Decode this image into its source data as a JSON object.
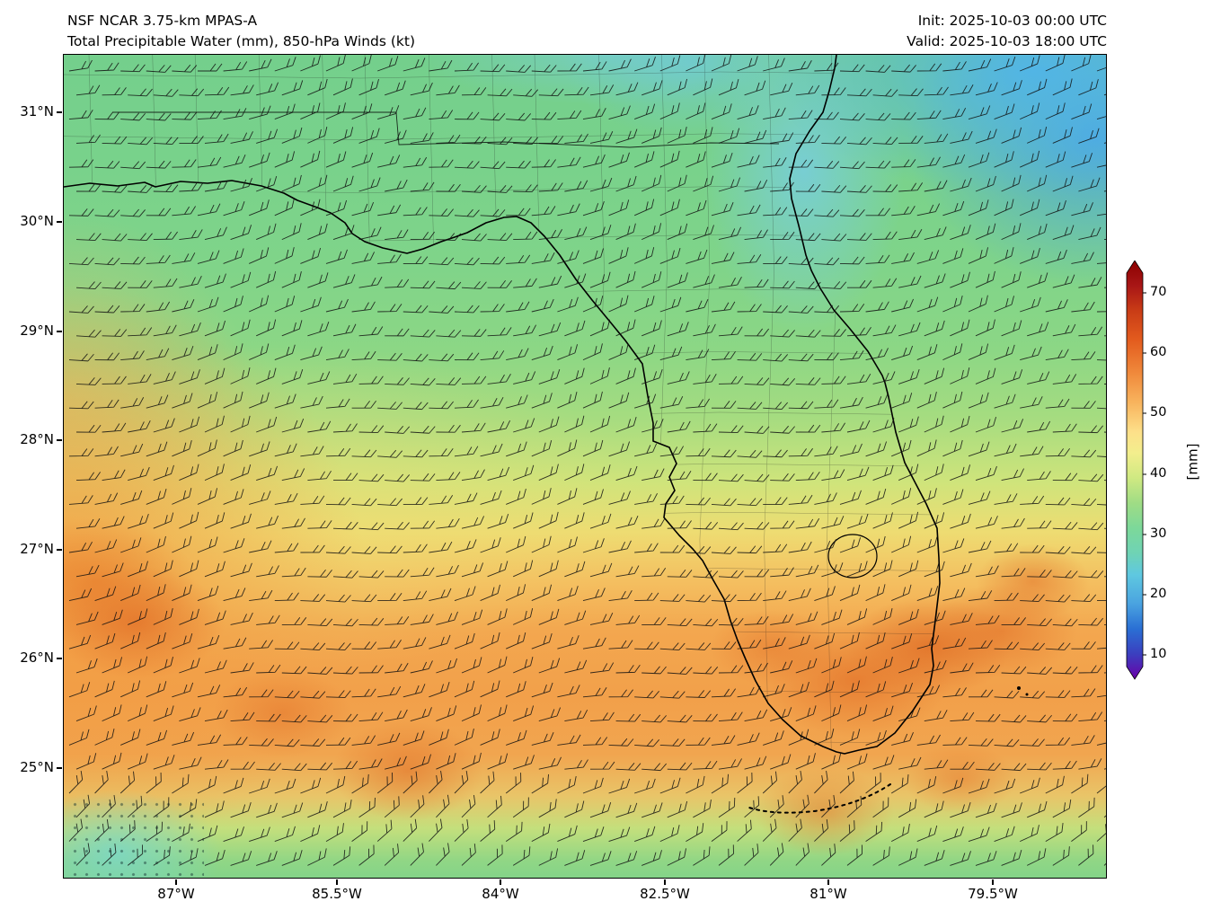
{
  "header": {
    "model_line": "NSF NCAR 3.75-km MPAS-A",
    "product_line": "Total Precipitable Water (mm), 850-hPa Winds (kt)",
    "init_line": "Init: 2025-10-03 00:00 UTC",
    "valid_line": "Valid: 2025-10-03 18:00 UTC"
  },
  "chart_data": {
    "type": "heatmap",
    "title": "Total Precipitable Water (mm), 850-hPa Winds (kt)",
    "subtitle": "NSF NCAR 3.75-km MPAS-A",
    "region": "Florida peninsula, eastern Gulf of Mexico and adjacent Atlantic",
    "x_axis": {
      "label": "",
      "ticks": [
        "87°W",
        "85.5°W",
        "84°W",
        "82.5°W",
        "81°W",
        "79.5°W"
      ],
      "range_deg_west": [
        88.0,
        78.5
      ]
    },
    "y_axis": {
      "label": "",
      "ticks": [
        "31°N",
        "30°N",
        "29°N",
        "28°N",
        "27°N",
        "26°N",
        "25°N"
      ],
      "range_deg_north": [
        24.0,
        31.5
      ]
    },
    "colorbar": {
      "label": "[mm]",
      "ticks": [
        70,
        60,
        50,
        40,
        30,
        20,
        10
      ],
      "min": 5,
      "max": 75,
      "colors": {
        "dark_red": "#8b0000",
        "orange": "#f2a04a",
        "yellow": "#eedc72",
        "green": "#7ad18b",
        "cyan": "#5ec2e6",
        "blue": "#2a6fd4",
        "purple": "#6a00a8"
      }
    },
    "field_summary": [
      {
        "area": "North Florida / Georgia (29–31.5°N)",
        "tpw_mm": "38–45 (green)"
      },
      {
        "area": "NE Atlantic waters (top right)",
        "tpw_mm": "25–35 (cyan/blue)"
      },
      {
        "area": "Central Florida (27.5–29°N)",
        "tpw_mm": "42–48 (green to yellow-green)"
      },
      {
        "area": "South Florida and adjacent waters (25–27°N)",
        "tpw_mm": "50–58 (orange), local maxima 58–62"
      },
      {
        "area": "Western Gulf (west of 86°W, 26–29°N)",
        "tpw_mm": "50–58 (orange)"
      },
      {
        "area": "Far south, Straits of Florida (24–24.7°N)",
        "tpw_mm": "40–48 (green/yellow), 30–35 stippled pocket SW corner"
      }
    ],
    "winds": {
      "level": "850 hPa",
      "units": "kt",
      "typical": "easterly to southeasterly 10–20 kt shown as wind barbs on regular grid"
    }
  }
}
